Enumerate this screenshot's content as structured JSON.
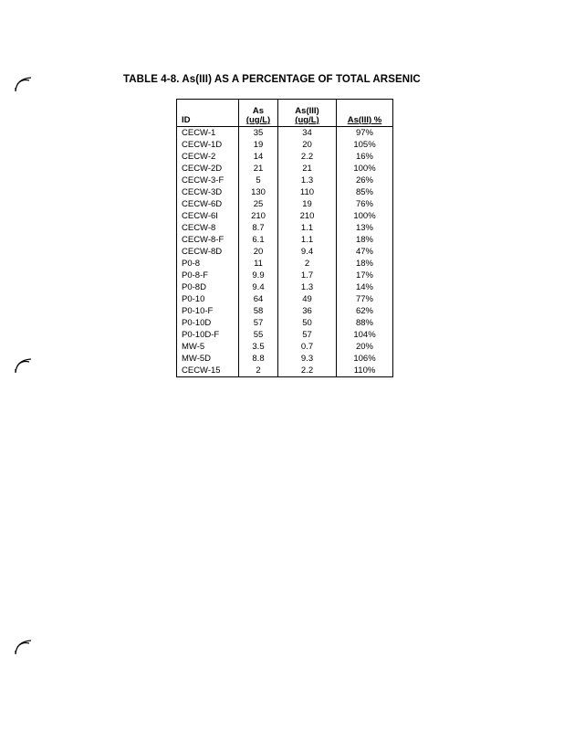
{
  "title": "TABLE 4-8. As(III) AS A PERCENTAGE OF TOTAL ARSENIC",
  "table": {
    "headers": {
      "id": "ID",
      "as_top": "As",
      "as_unit": "(ug/L)",
      "as3_top": "As(III)",
      "as3_unit": "(ug/L)",
      "pct": "As(III) %"
    },
    "rows": [
      [
        "CECW-1",
        "35",
        "34",
        "97%"
      ],
      [
        "CECW-1D",
        "19",
        "20",
        "105%"
      ],
      [
        "CECW-2",
        "14",
        "2.2",
        "16%"
      ],
      [
        "CECW-2D",
        "21",
        "21",
        "100%"
      ],
      [
        "CECW-3-F",
        "5",
        "1.3",
        "26%"
      ],
      [
        "CECW-3D",
        "130",
        "110",
        "85%"
      ],
      [
        "CECW-6D",
        "25",
        "19",
        "76%"
      ],
      [
        "CECW-6I",
        "210",
        "210",
        "100%"
      ],
      [
        "CECW-8",
        "8.7",
        "1.1",
        "13%"
      ],
      [
        "CECW-8-F",
        "6.1",
        "1.1",
        "18%"
      ],
      [
        "CECW-8D",
        "20",
        "9.4",
        "47%"
      ],
      [
        "P0-8",
        "11",
        "2",
        "18%"
      ],
      [
        "P0-8-F",
        "9.9",
        "1.7",
        "17%"
      ],
      [
        "P0-8D",
        "9.4",
        "1.3",
        "14%"
      ],
      [
        "P0-10",
        "64",
        "49",
        "77%"
      ],
      [
        "P0-10-F",
        "58",
        "36",
        "62%"
      ],
      [
        "P0-10D",
        "57",
        "50",
        "88%"
      ],
      [
        "P0-10D-F",
        "55",
        "57",
        "104%"
      ],
      [
        "MW-5",
        "3.5",
        "0.7",
        "20%"
      ],
      [
        "MW-5D",
        "8.8",
        "9.3",
        "106%"
      ],
      [
        "CECW-15",
        "2",
        "2.2",
        "110%"
      ]
    ]
  },
  "marks": {
    "icon": "page-corner-curl-icon"
  }
}
